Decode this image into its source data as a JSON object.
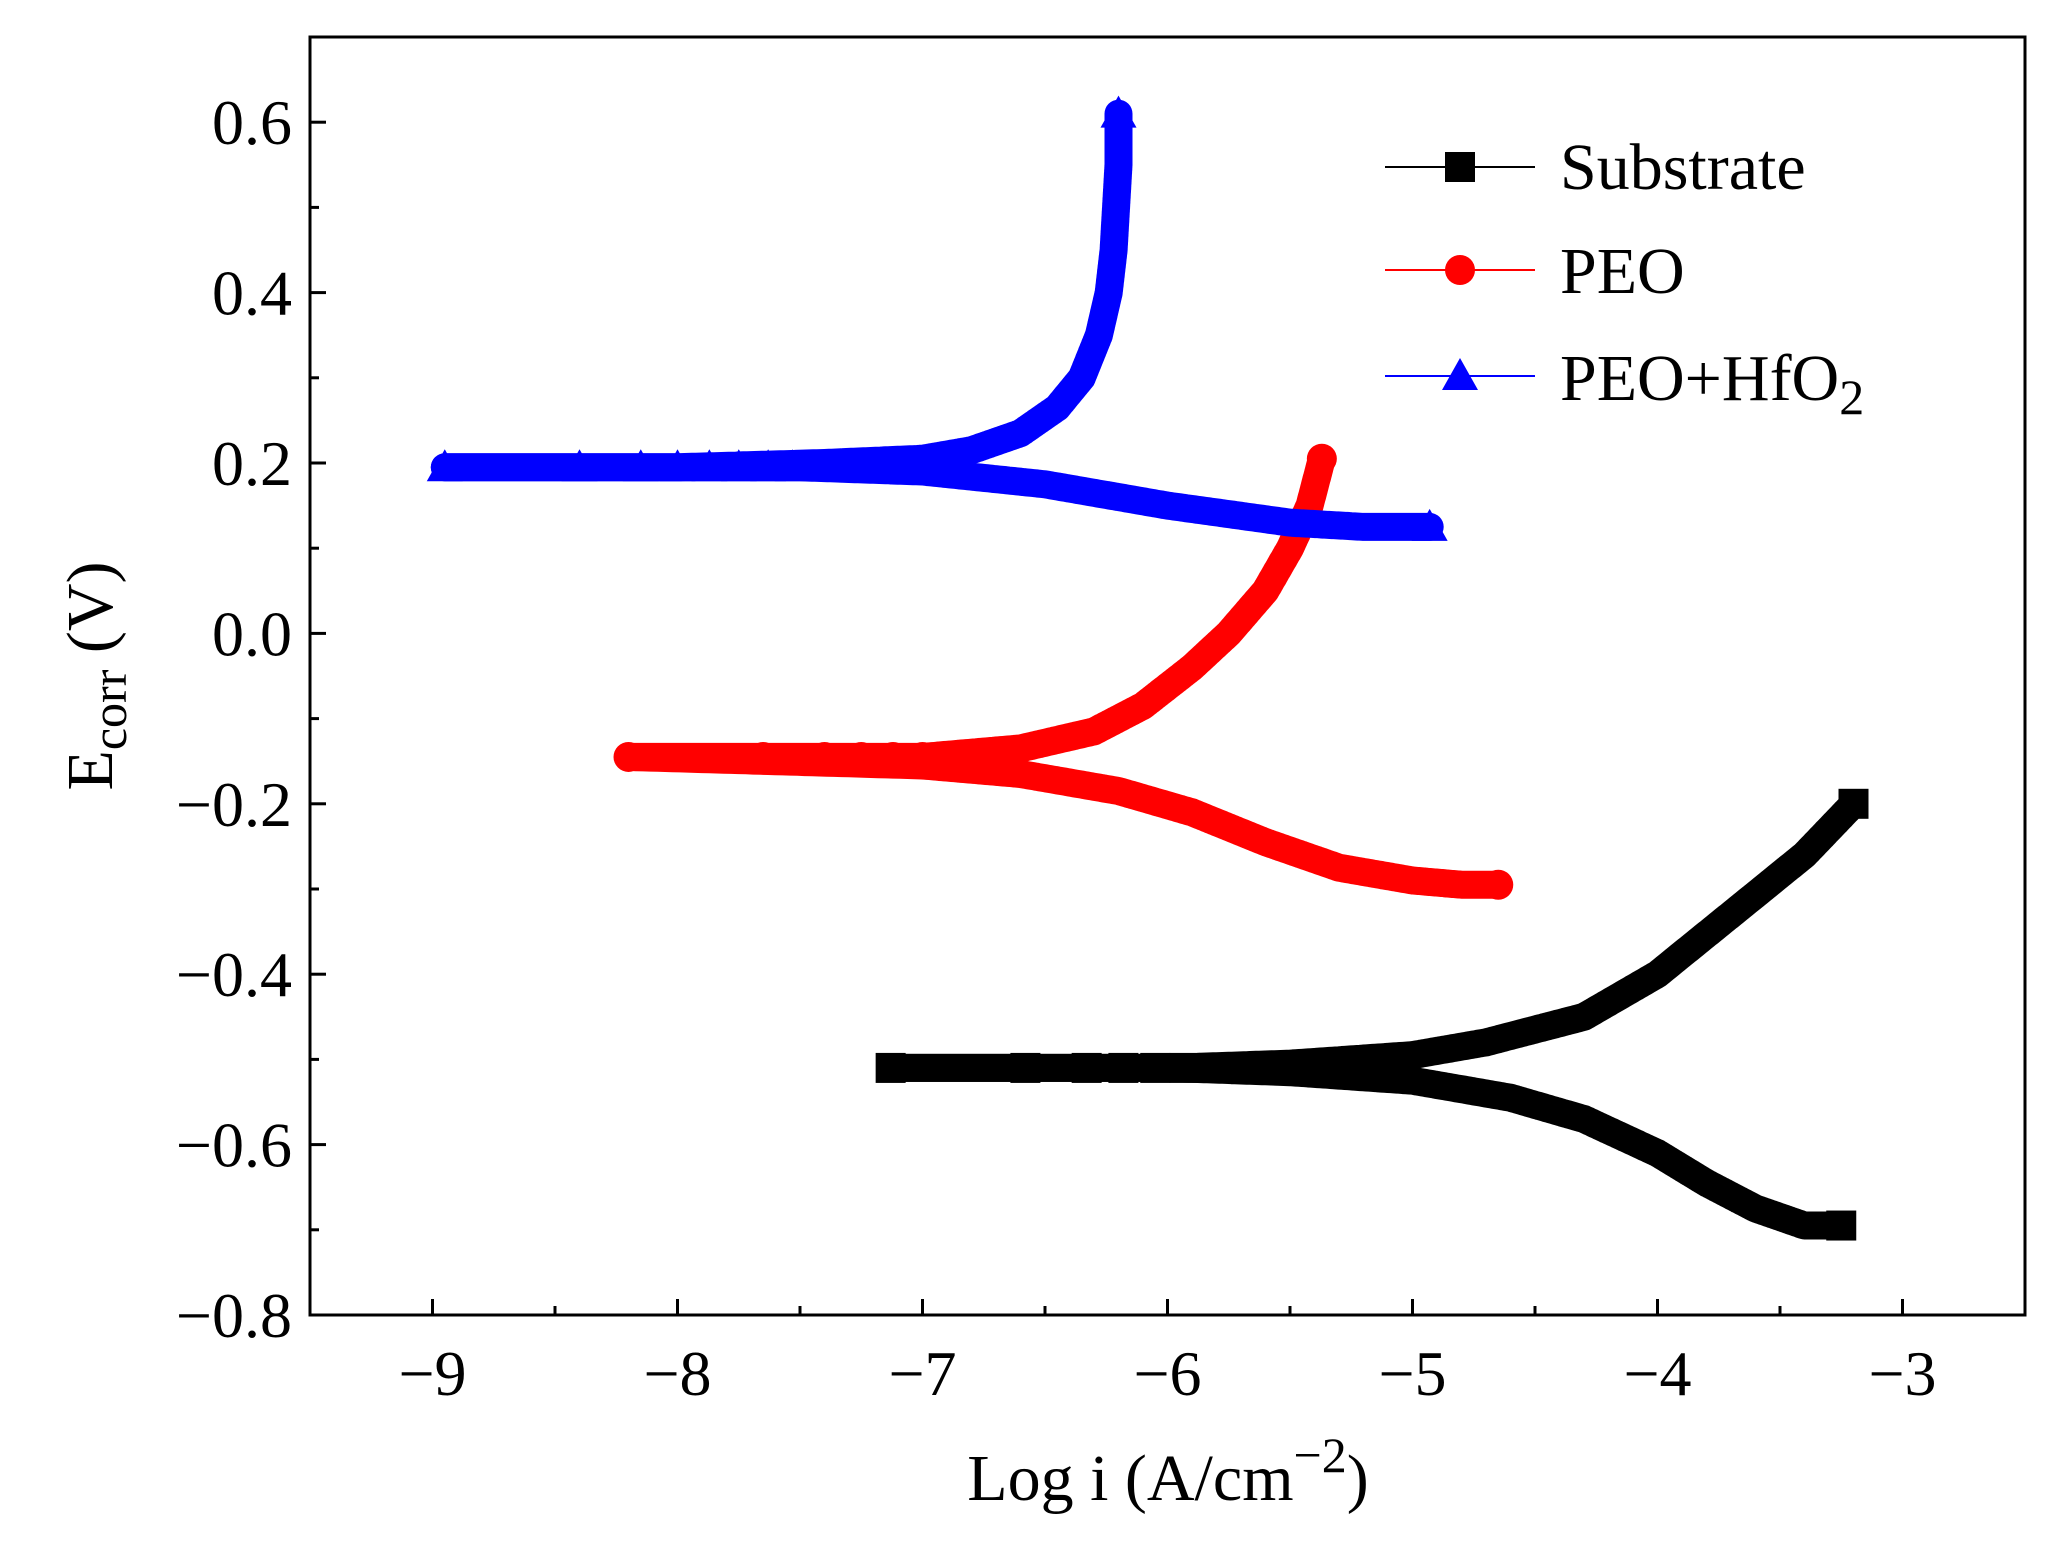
{
  "chart_data": {
    "type": "line",
    "title": "",
    "xlabel_main": "Log i (A/cm",
    "xlabel_sup": "−2",
    "xlabel_tail": ")",
    "ylabel_main": "E",
    "ylabel_sub": "corr",
    "ylabel_tail": " (V)",
    "xlim": [
      -9.5,
      -2.5
    ],
    "ylim": [
      -0.8,
      0.7
    ],
    "x_ticks": [
      -9,
      -8,
      -7,
      -6,
      -5,
      -4,
      -3
    ],
    "x_tick_labels": [
      "−9",
      "−8",
      "−7",
      "−6",
      "−5",
      "−4",
      "−3"
    ],
    "y_ticks": [
      0.6,
      0.4,
      0.2,
      0.0,
      -0.2,
      -0.4,
      -0.6,
      -0.8
    ],
    "y_tick_labels": [
      "0.6",
      "0.4",
      "0.2",
      "0.0",
      "−0.2",
      "−0.4",
      "−0.6",
      "−0.8"
    ],
    "legend_position": "top-right",
    "series": [
      {
        "name": "Substrate",
        "color": "#000000",
        "marker": "square",
        "anchor_x": -7.13,
        "ecorr": -0.51,
        "anodic": {
          "x": [
            -7.13,
            -6.5,
            -6.0,
            -5.5,
            -5.0,
            -4.7,
            -4.3,
            -4.0,
            -3.7,
            -3.4,
            -3.2
          ],
          "y": [
            -0.51,
            -0.51,
            -0.51,
            -0.505,
            -0.495,
            -0.48,
            -0.45,
            -0.4,
            -0.33,
            -0.26,
            -0.2
          ]
        },
        "cathodic": {
          "x": [
            -7.13,
            -6.0,
            -5.5,
            -5.0,
            -4.6,
            -4.3,
            -4.0,
            -3.8,
            -3.6,
            -3.4,
            -3.25
          ],
          "y": [
            -0.51,
            -0.51,
            -0.515,
            -0.525,
            -0.545,
            -0.57,
            -0.61,
            -0.645,
            -0.675,
            -0.695,
            -0.695
          ]
        }
      },
      {
        "name": "PEO",
        "color": "#ff0000",
        "marker": "circle",
        "anchor_x": -8.2,
        "ecorr": -0.145,
        "anodic": {
          "x": [
            -8.2,
            -7.5,
            -7.0,
            -6.6,
            -6.3,
            -6.1,
            -5.9,
            -5.75,
            -5.6,
            -5.5,
            -5.42,
            -5.37
          ],
          "y": [
            -0.145,
            -0.145,
            -0.145,
            -0.135,
            -0.115,
            -0.085,
            -0.04,
            0.0,
            0.05,
            0.1,
            0.15,
            0.205
          ]
        },
        "cathodic": {
          "x": [
            -8.2,
            -7.0,
            -6.6,
            -6.2,
            -5.9,
            -5.6,
            -5.3,
            -5.0,
            -4.8,
            -4.65
          ],
          "y": [
            -0.145,
            -0.155,
            -0.165,
            -0.185,
            -0.21,
            -0.245,
            -0.275,
            -0.29,
            -0.295,
            -0.295
          ]
        }
      },
      {
        "name": "PEO+HfO2",
        "name_main": "PEO+HfO",
        "name_sub": "2",
        "color": "#0000ff",
        "marker": "triangle",
        "anchor_x": -8.95,
        "ecorr": 0.195,
        "anodic": {
          "x": [
            -8.95,
            -8.0,
            -7.4,
            -7.0,
            -6.8,
            -6.6,
            -6.45,
            -6.35,
            -6.28,
            -6.24,
            -6.22,
            -6.21,
            -6.2,
            -6.2
          ],
          "y": [
            0.195,
            0.195,
            0.2,
            0.205,
            0.215,
            0.235,
            0.265,
            0.3,
            0.35,
            0.4,
            0.45,
            0.5,
            0.55,
            0.61
          ]
        },
        "cathodic": {
          "x": [
            -8.95,
            -7.5,
            -7.0,
            -6.5,
            -6.0,
            -5.5,
            -5.2,
            -4.93
          ],
          "y": [
            0.195,
            0.195,
            0.19,
            0.175,
            0.15,
            0.13,
            0.125,
            0.125
          ]
        }
      }
    ]
  }
}
